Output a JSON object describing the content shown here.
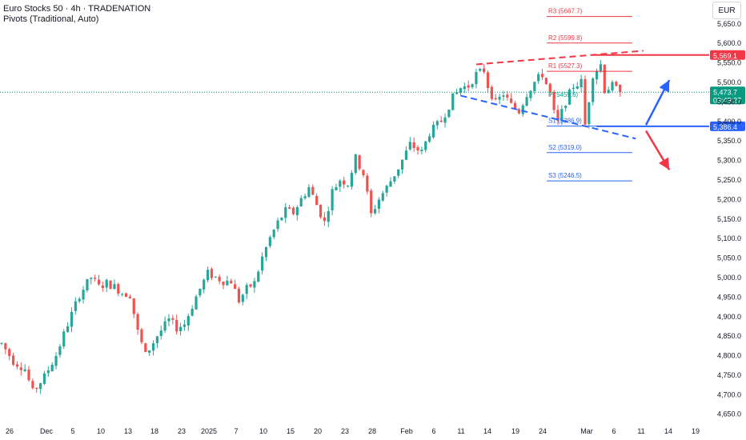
{
  "header": {
    "title": "Euro Stocks 50 · 4h · TRADENATION",
    "indicator": "Pivots (Traditional, Auto)"
  },
  "currency_button": "EUR",
  "colors": {
    "up": "#26a69a",
    "down": "#ef5350",
    "resistance": "#f23645",
    "support": "#2962ff",
    "price": "#089981"
  },
  "chart_data": {
    "type": "candlestick",
    "interval": "4h",
    "y_range": [
      4630,
      5710
    ],
    "y_ticks": [
      "5,650.0",
      "5,600.0",
      "5,550.0",
      "5,500.0",
      "5,450.0",
      "5,400.0",
      "5,350.0",
      "5,300.0",
      "5,250.0",
      "5,200.0",
      "5,150.0",
      "5,100.0",
      "5,050.0",
      "5,000.0",
      "4,950.0",
      "4,900.0",
      "4,850.0",
      "4,800.0",
      "4,750.0",
      "4,700.0",
      "4,650.0"
    ],
    "x_ticks": [
      "26",
      "Dec",
      "5",
      "10",
      "13",
      "18",
      "23",
      "2025",
      "7",
      "10",
      "15",
      "20",
      "23",
      "28",
      "Feb",
      "6",
      "11",
      "14",
      "19",
      "24",
      "Mar",
      "6",
      "11",
      "14",
      "19"
    ],
    "trend_path": [
      [
        0,
        4830
      ],
      [
        3,
        4785
      ],
      [
        6,
        4765
      ],
      [
        8,
        4705
      ],
      [
        11,
        4745
      ],
      [
        14,
        4800
      ],
      [
        17,
        4880
      ],
      [
        20,
        4955
      ],
      [
        23,
        5000
      ],
      [
        25,
        4975
      ],
      [
        27,
        4985
      ],
      [
        29,
        4975
      ],
      [
        31,
        4960
      ],
      [
        33,
        4955
      ],
      [
        35,
        4860
      ],
      [
        37,
        4800
      ],
      [
        40,
        4850
      ],
      [
        43,
        4890
      ],
      [
        45,
        4870
      ],
      [
        47,
        4880
      ],
      [
        50,
        4950
      ],
      [
        53,
        5010
      ],
      [
        55,
        5000
      ],
      [
        57,
        4990
      ],
      [
        59,
        4990
      ],
      [
        61,
        4940
      ],
      [
        63,
        4970
      ],
      [
        65,
        4985
      ],
      [
        67,
        5050
      ],
      [
        69,
        5100
      ],
      [
        71,
        5140
      ],
      [
        73,
        5170
      ],
      [
        75,
        5165
      ],
      [
        77,
        5200
      ],
      [
        79,
        5230
      ],
      [
        81,
        5185
      ],
      [
        83,
        5140
      ],
      [
        85,
        5220
      ],
      [
        87,
        5250
      ],
      [
        89,
        5240
      ],
      [
        91,
        5305
      ],
      [
        93,
        5265
      ],
      [
        95,
        5160
      ],
      [
        97,
        5200
      ],
      [
        99,
        5230
      ],
      [
        102,
        5280
      ],
      [
        105,
        5340
      ],
      [
        108,
        5320
      ],
      [
        110,
        5370
      ],
      [
        113,
        5400
      ],
      [
        116,
        5460
      ],
      [
        118,
        5485
      ],
      [
        120,
        5490
      ],
      [
        122,
        5520
      ],
      [
        124,
        5530
      ],
      [
        125,
        5490
      ],
      [
        127,
        5445
      ],
      [
        129,
        5470
      ],
      [
        131,
        5440
      ],
      [
        133,
        5425
      ],
      [
        135,
        5470
      ],
      [
        137,
        5500
      ],
      [
        139,
        5520
      ],
      [
        141,
        5470
      ],
      [
        142,
        5420
      ],
      [
        143,
        5395
      ],
      [
        145,
        5450
      ],
      [
        147,
        5490
      ],
      [
        149,
        5500
      ],
      [
        150,
        5390
      ],
      [
        152,
        5520
      ],
      [
        154,
        5545
      ],
      [
        155,
        5480
      ],
      [
        157,
        5490
      ],
      [
        159,
        5473.7
      ]
    ],
    "pivots": [
      {
        "label": "R3 (5667.7)",
        "value": 5667.7,
        "kind": "resistance"
      },
      {
        "label": "R2 (5599.8)",
        "value": 5599.8,
        "kind": "resistance"
      },
      {
        "label": "R1 (5527.3)",
        "value": 5527.3,
        "kind": "resistance"
      },
      {
        "label": "S1 (5386.9)",
        "value": 5386.9,
        "kind": "support"
      },
      {
        "label": "S2 (5319.0)",
        "value": 5319.0,
        "kind": "support"
      },
      {
        "label": "S3 (5246.5)",
        "value": 5246.5,
        "kind": "support"
      }
    ],
    "pivot_point_label": "P (5459.6)",
    "resistance_level": {
      "label": "5,569.1",
      "value": 5569.1
    },
    "support_level": {
      "label": "5,386.4",
      "value": 5386.4
    },
    "last_price": {
      "label": "5,473.7",
      "value": 5473.7,
      "countdown": "03:49:27"
    },
    "trendlines": [
      {
        "kind": "resistance",
        "from": [
          122,
          5545
        ],
        "to": [
          165,
          5580
        ]
      },
      {
        "kind": "support",
        "from": [
          118,
          5465
        ],
        "to": [
          163,
          5355
        ]
      }
    ],
    "arrows": [
      {
        "kind": "bullish",
        "from": [
          164,
          5390
        ],
        "to": [
          170,
          5505
        ]
      },
      {
        "kind": "bearish",
        "from": [
          164,
          5375
        ],
        "to": [
          170,
          5275
        ]
      }
    ]
  }
}
